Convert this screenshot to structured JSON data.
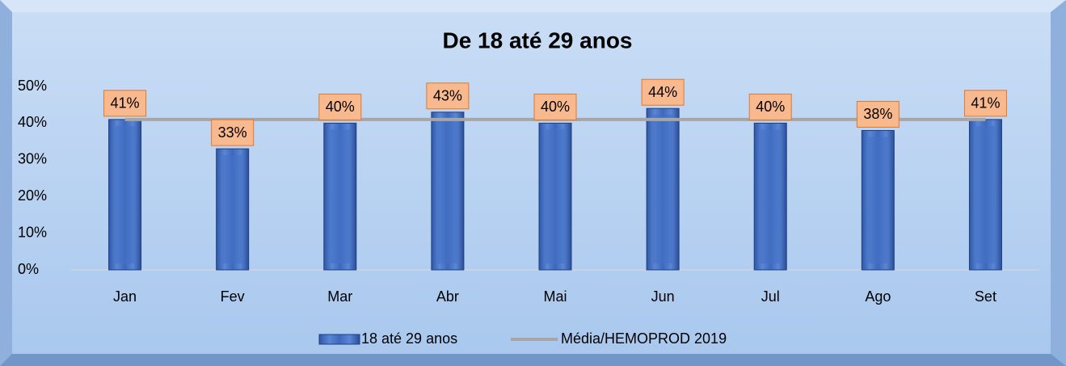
{
  "chart_data": {
    "type": "bar",
    "title": "De 18 até 29 anos",
    "categories": [
      "Jan",
      "Fev",
      "Mar",
      "Abr",
      "Mai",
      "Jun",
      "Jul",
      "Ago",
      "Set"
    ],
    "series": [
      {
        "name": "18 até 29 anos",
        "type": "bar",
        "color": "#4472c4",
        "values": [
          41,
          33,
          40,
          43,
          40,
          44,
          40,
          38,
          41
        ],
        "value_labels": [
          "41%",
          "33%",
          "40%",
          "43%",
          "40%",
          "44%",
          "40%",
          "38%",
          "41%"
        ]
      },
      {
        "name": "Média/HEMOPROD 2019",
        "type": "line",
        "color": "#a6a6a6",
        "values": [
          41,
          41,
          41,
          41,
          41,
          41,
          41,
          41,
          41
        ]
      }
    ],
    "ylim": [
      0,
      50
    ],
    "yticks": [
      {
        "value": 0,
        "label": "0%"
      },
      {
        "value": 10,
        "label": "10%"
      },
      {
        "value": 20,
        "label": "20%"
      },
      {
        "value": 30,
        "label": "30%"
      },
      {
        "value": 40,
        "label": "40%"
      },
      {
        "value": 50,
        "label": "50%"
      }
    ],
    "grid": false,
    "legend": "bottom"
  }
}
